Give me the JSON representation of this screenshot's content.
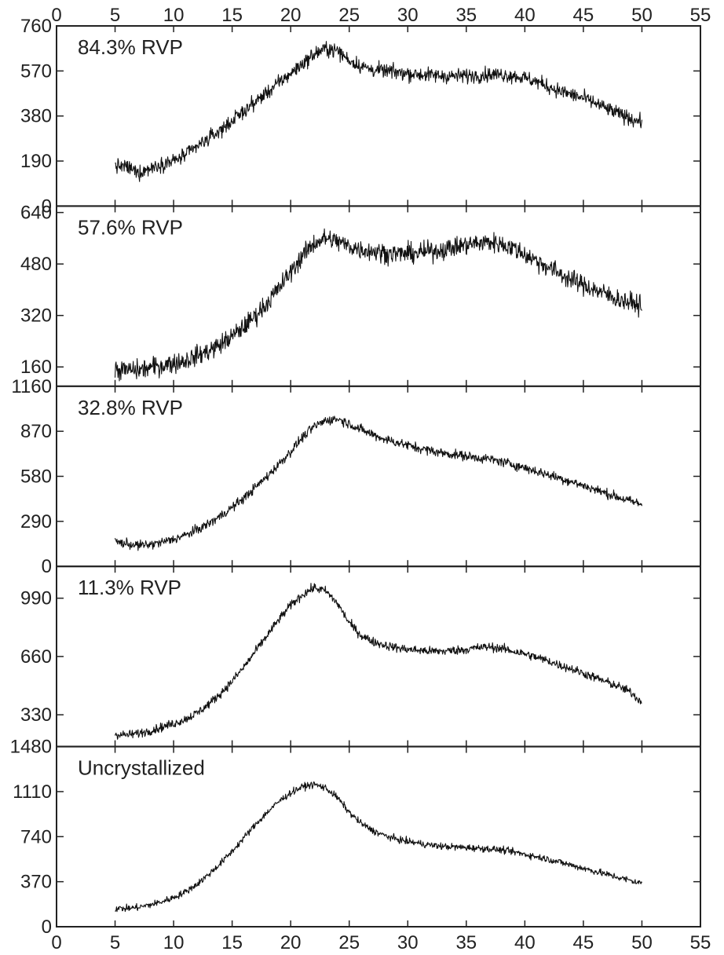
{
  "chart_data": {
    "type": "line",
    "x_axis": {
      "range": [
        0,
        55
      ],
      "ticks": [
        0,
        5,
        10,
        15,
        20,
        25,
        30,
        35,
        40,
        45,
        50,
        55
      ],
      "tick_labels": [
        "0",
        "5",
        "10",
        "15",
        "20",
        "25",
        "30",
        "35",
        "40",
        "45",
        "50",
        "55"
      ],
      "shown_on": "top-and-bottom"
    },
    "panels": [
      {
        "label": "84.3% RVP",
        "ylim": [
          0,
          760
        ],
        "y_ticks": [
          0,
          190,
          380,
          570,
          760
        ],
        "y_tick_labels": [
          "0",
          "190",
          "380",
          "570",
          "760"
        ],
        "noise": 22,
        "x": [
          5,
          6,
          7,
          8,
          9,
          10,
          11,
          12,
          13,
          14,
          15,
          16,
          17,
          18,
          19,
          20,
          21,
          22,
          23,
          24,
          25,
          26,
          27,
          28,
          29,
          30,
          31,
          32,
          33,
          34,
          35,
          36,
          37,
          38,
          39,
          40,
          41,
          42,
          43,
          44,
          45,
          46,
          47,
          48,
          49,
          50
        ],
        "y": [
          170,
          165,
          140,
          160,
          180,
          190,
          215,
          250,
          285,
          320,
          360,
          400,
          440,
          480,
          520,
          560,
          600,
          640,
          665,
          655,
          615,
          590,
          575,
          570,
          565,
          560,
          555,
          552,
          550,
          548,
          550,
          552,
          555,
          555,
          550,
          540,
          525,
          505,
          485,
          470,
          455,
          435,
          410,
          390,
          370,
          355
        ]
      },
      {
        "label": "57.6% RVP",
        "ylim": [
          100,
          660
        ],
        "y_ticks": [
          160,
          320,
          480,
          640
        ],
        "y_tick_labels": [
          "160",
          "320",
          "480",
          "640"
        ],
        "noise": 22,
        "x": [
          5,
          6,
          7,
          8,
          9,
          10,
          11,
          12,
          13,
          14,
          15,
          16,
          17,
          18,
          19,
          20,
          21,
          22,
          23,
          24,
          25,
          26,
          27,
          28,
          29,
          30,
          31,
          32,
          33,
          34,
          35,
          36,
          37,
          38,
          39,
          40,
          41,
          42,
          43,
          44,
          45,
          46,
          47,
          48,
          49,
          50
        ],
        "y": [
          150,
          150,
          150,
          158,
          165,
          172,
          180,
          195,
          210,
          230,
          255,
          285,
          320,
          360,
          405,
          455,
          505,
          545,
          560,
          550,
          535,
          525,
          520,
          515,
          512,
          512,
          515,
          520,
          525,
          532,
          540,
          545,
          548,
          542,
          530,
          510,
          490,
          470,
          450,
          430,
          415,
          400,
          385,
          370,
          360,
          352
        ]
      },
      {
        "label": "32.8% RVP",
        "ylim": [
          0,
          1160
        ],
        "y_ticks": [
          0,
          290,
          580,
          870,
          1160
        ],
        "y_tick_labels": [
          "0",
          "290",
          "580",
          "870",
          "1160"
        ],
        "noise": 22,
        "x": [
          5,
          6,
          7,
          8,
          9,
          10,
          11,
          12,
          13,
          14,
          15,
          16,
          17,
          18,
          19,
          20,
          21,
          22,
          23,
          24,
          25,
          26,
          27,
          28,
          29,
          30,
          31,
          32,
          33,
          34,
          35,
          36,
          37,
          38,
          39,
          40,
          41,
          42,
          43,
          44,
          45,
          46,
          47,
          48,
          49,
          50
        ],
        "y": [
          160,
          145,
          135,
          140,
          155,
          175,
          200,
          235,
          275,
          325,
          380,
          440,
          510,
          580,
          660,
          740,
          830,
          900,
          940,
          950,
          920,
          880,
          850,
          820,
          800,
          780,
          760,
          745,
          730,
          720,
          710,
          700,
          690,
          675,
          655,
          635,
          612,
          590,
          568,
          545,
          520,
          495,
          470,
          445,
          420,
          400
        ]
      },
      {
        "label": "11.3% RVP",
        "ylim": [
          150,
          1170
        ],
        "y_ticks": [
          330,
          660,
          990
        ],
        "y_tick_labels": [
          "330",
          "660",
          "990"
        ],
        "noise": 18,
        "x": [
          5,
          6,
          7,
          8,
          9,
          10,
          11,
          12,
          13,
          14,
          15,
          16,
          17,
          18,
          19,
          20,
          21,
          22,
          23,
          24,
          25,
          26,
          27,
          28,
          29,
          30,
          31,
          32,
          33,
          34,
          35,
          36,
          37,
          38,
          39,
          40,
          41,
          42,
          43,
          44,
          45,
          46,
          47,
          48,
          49,
          50
        ],
        "y": [
          220,
          215,
          225,
          240,
          260,
          280,
          305,
          340,
          390,
          450,
          520,
          600,
          690,
          780,
          870,
          950,
          1010,
          1050,
          1030,
          960,
          850,
          780,
          745,
          725,
          710,
          700,
          695,
          690,
          690,
          695,
          700,
          710,
          715,
          705,
          690,
          675,
          655,
          635,
          610,
          590,
          565,
          540,
          515,
          490,
          460,
          400
        ]
      },
      {
        "label": "Uncrystallized",
        "ylim": [
          0,
          1480
        ],
        "y_ticks": [
          0,
          370,
          740,
          1110,
          1480
        ],
        "y_tick_labels": [
          "0",
          "370",
          "740",
          "1110",
          "1480"
        ],
        "noise": 20,
        "x": [
          5,
          6,
          7,
          8,
          9,
          10,
          11,
          12,
          13,
          14,
          15,
          16,
          17,
          18,
          19,
          20,
          21,
          22,
          23,
          24,
          25,
          26,
          27,
          28,
          29,
          30,
          31,
          32,
          33,
          34,
          35,
          36,
          37,
          38,
          39,
          40,
          41,
          42,
          43,
          44,
          45,
          46,
          47,
          48,
          49,
          50
        ],
        "y": [
          150,
          150,
          160,
          180,
          205,
          240,
          285,
          350,
          430,
          520,
          620,
          730,
          840,
          940,
          1030,
          1100,
          1150,
          1170,
          1140,
          1060,
          940,
          850,
          790,
          750,
          720,
          700,
          685,
          670,
          660,
          655,
          650,
          645,
          640,
          630,
          615,
          595,
          575,
          555,
          530,
          505,
          480,
          455,
          430,
          405,
          380,
          355
        ]
      }
    ]
  }
}
